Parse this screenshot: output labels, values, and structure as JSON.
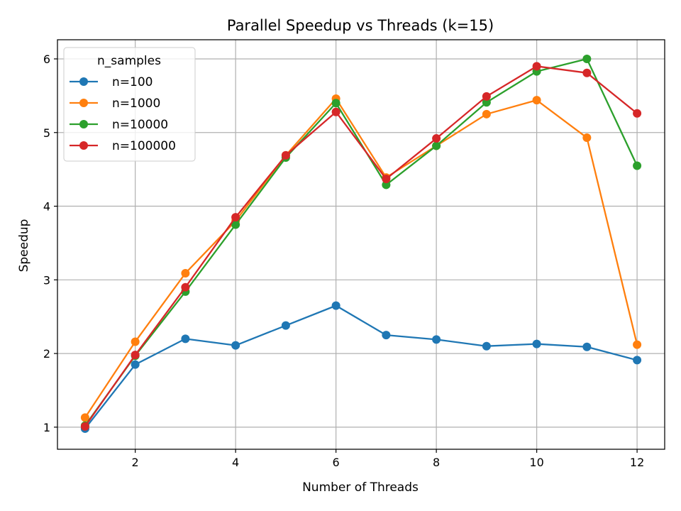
{
  "chart_data": {
    "type": "line",
    "title": "Parallel Speedup vs Threads (k=15)",
    "xlabel": "Number of Threads",
    "ylabel": "Speedup",
    "x": [
      1,
      2,
      3,
      4,
      5,
      6,
      7,
      8,
      9,
      10,
      11,
      12
    ],
    "xlim": [
      0.45,
      12.55
    ],
    "ylim": [
      0.7,
      6.26
    ],
    "xticks": [
      2,
      4,
      6,
      8,
      10,
      12
    ],
    "yticks": [
      1,
      2,
      3,
      4,
      5,
      6
    ],
    "grid": true,
    "legend": {
      "title": "n_samples",
      "placement": "top-left"
    },
    "series": [
      {
        "name": "n=100",
        "color": "#1f77b4",
        "values": [
          0.98,
          1.85,
          2.2,
          2.11,
          2.38,
          2.65,
          2.25,
          2.19,
          2.1,
          2.13,
          2.09,
          1.91
        ]
      },
      {
        "name": "n=1000",
        "color": "#ff7f0e",
        "values": [
          1.13,
          2.16,
          3.09,
          3.8,
          4.69,
          5.46,
          4.39,
          4.82,
          5.25,
          5.44,
          4.93,
          2.12
        ]
      },
      {
        "name": "n=10000",
        "color": "#2ca02c",
        "values": [
          1.02,
          1.97,
          2.84,
          3.75,
          4.66,
          5.4,
          4.29,
          4.82,
          5.41,
          5.83,
          6.0,
          4.55
        ]
      },
      {
        "name": "n=100000",
        "color": "#d62728",
        "values": [
          1.01,
          1.98,
          2.9,
          3.85,
          4.69,
          5.28,
          4.37,
          4.92,
          5.49,
          5.9,
          5.81,
          5.26
        ]
      }
    ]
  }
}
